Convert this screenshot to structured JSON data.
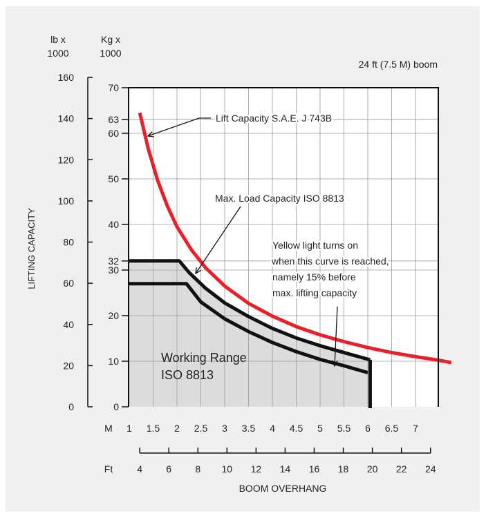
{
  "chart_data": {
    "type": "line",
    "title": "24 ft (7.5 M) boom",
    "xlabel": "BOOM OVERHANG",
    "ylabel": "LIFTING CAPACITY",
    "y_left_unit_top": "lb x",
    "y_left_unit_bottom": "1000",
    "y_kg_unit_top": "Kg x",
    "y_kg_unit_bottom": "1000",
    "x_m_label": "M",
    "x_ft_label": "Ft",
    "xlim_m": [
      1,
      7.75
    ],
    "ylim_kg": [
      0,
      70
    ],
    "grid": true,
    "x_m_ticks": [
      "1",
      "1.5",
      "2",
      "2.5",
      "3",
      "3.5",
      "4",
      "4.5",
      "5",
      "5.5",
      "6",
      "6.5",
      "7"
    ],
    "x_ft_ticks": [
      "4",
      "6",
      "8",
      "10",
      "12",
      "14",
      "16",
      "18",
      "20",
      "22",
      "24"
    ],
    "y_kg_ticks": [
      "0",
      "10",
      "20",
      "30",
      "32",
      "40",
      "50",
      "60",
      "63",
      "70"
    ],
    "y_lb_ticks": [
      "0",
      "20",
      "40",
      "60",
      "80",
      "100",
      "120",
      "140",
      "160"
    ],
    "series": [
      {
        "name": "Lift Capacity S.A.E. J 743B",
        "color": "#e8202a",
        "x": [
          1.22,
          1.4,
          1.6,
          1.8,
          2.0,
          2.3,
          2.6,
          3.0,
          3.5,
          4.0,
          4.5,
          5.0,
          5.5,
          6.0,
          6.5,
          7.0,
          7.5,
          7.75
        ],
        "y": [
          64.5,
          56.5,
          49.5,
          44.0,
          39.5,
          34.5,
          30.5,
          26.5,
          22.7,
          19.9,
          17.6,
          15.8,
          14.3,
          13.0,
          11.9,
          11.0,
          10.2,
          9.7
        ]
      },
      {
        "name": "Max. Load Capacity ISO 8813",
        "color": "#111111",
        "x": [
          1.0,
          2.05,
          2.25,
          2.6,
          3.0,
          3.5,
          4.0,
          4.5,
          5.0,
          5.5,
          6.05
        ],
        "y": [
          32.0,
          32.0,
          29.5,
          26.0,
          22.8,
          19.8,
          17.2,
          15.1,
          13.4,
          11.9,
          10.3
        ]
      },
      {
        "name": "Yellow light curve",
        "color": "#111111",
        "x": [
          1.0,
          2.2,
          2.5,
          3.0,
          3.5,
          4.0,
          4.5,
          5.0,
          5.5,
          6.0
        ],
        "y": [
          27.0,
          27.0,
          23.0,
          19.3,
          16.5,
          14.1,
          12.1,
          10.4,
          9.0,
          7.5
        ]
      }
    ],
    "annotations": [
      {
        "id": "lift",
        "text": "Lift Capacity S.A.E. J 743B"
      },
      {
        "id": "maxload",
        "text": "Max. Load Capacity ISO 8813"
      },
      {
        "id": "yellow",
        "lines": [
          "Yellow light turns on",
          "when this curve is reached,",
          "namely 15% before",
          "max. lifting capacity"
        ]
      },
      {
        "id": "range",
        "lines": [
          "Working Range",
          "ISO 8813"
        ]
      }
    ]
  }
}
